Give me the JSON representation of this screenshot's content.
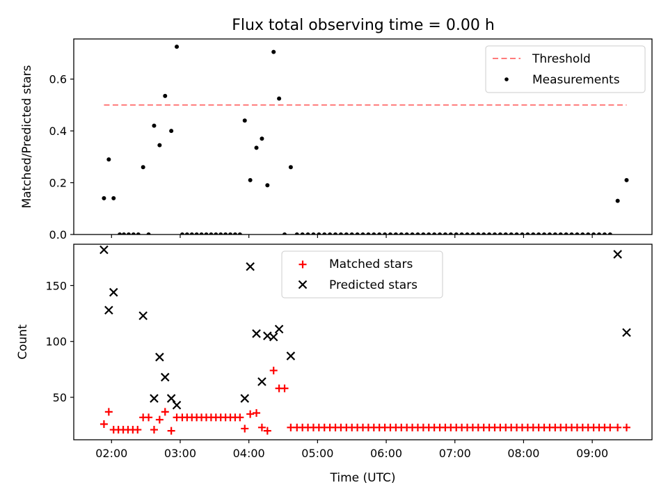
{
  "figure": {
    "title": "Flux total observing time = 0.00 h"
  },
  "chart_data": [
    {
      "type": "scatter",
      "ylabel": "Matched/Predicted stars",
      "xlabel": "",
      "xlim": [
        1.45,
        9.87
      ],
      "ylim": [
        0.0,
        0.755
      ],
      "yticks": [
        0.0,
        0.2,
        0.4,
        0.6
      ],
      "ytick_labels": [
        "0.0",
        "0.2",
        "0.4",
        "0.6"
      ],
      "grid": false,
      "legend_position": "upper-right",
      "threshold": {
        "name": "Threshold",
        "value": 0.5,
        "x": [
          1.89,
          9.5
        ],
        "color": "#ff7b7b"
      },
      "series": [
        {
          "name": "Measurements",
          "color": "#000000",
          "x": [
            1.89,
            1.96,
            2.03,
            2.12,
            2.18,
            2.25,
            2.32,
            2.39,
            2.46,
            2.54,
            2.62,
            2.7,
            2.78,
            2.87,
            2.95,
            3.03,
            3.1,
            3.17,
            3.24,
            3.31,
            3.38,
            3.45,
            3.52,
            3.59,
            3.66,
            3.73,
            3.8,
            3.87,
            3.94,
            4.02,
            4.11,
            4.19,
            4.27,
            4.36,
            4.44,
            4.52,
            4.61,
            4.7,
            4.78,
            4.86,
            4.94,
            5.02,
            5.1,
            5.18,
            5.26,
            5.34,
            5.42,
            5.5,
            5.58,
            5.66,
            5.74,
            5.82,
            5.9,
            5.98,
            6.06,
            6.14,
            6.22,
            6.3,
            6.38,
            6.46,
            6.54,
            6.62,
            6.7,
            6.78,
            6.86,
            6.94,
            7.02,
            7.1,
            7.18,
            7.26,
            7.34,
            7.42,
            7.5,
            7.58,
            7.66,
            7.74,
            7.82,
            7.9,
            7.98,
            8.06,
            8.14,
            8.22,
            8.3,
            8.38,
            8.46,
            8.54,
            8.62,
            8.7,
            8.78,
            8.86,
            8.94,
            9.02,
            9.1,
            9.18,
            9.26,
            9.37,
            9.5
          ],
          "y": [
            0.14,
            0.29,
            0.14,
            0.0,
            0.0,
            0.0,
            0.0,
            0.0,
            0.26,
            0.0,
            0.42,
            0.345,
            0.535,
            0.4,
            0.725,
            0.0,
            0.0,
            0.0,
            0.0,
            0.0,
            0.0,
            0.0,
            0.0,
            0.0,
            0.0,
            0.0,
            0.0,
            0.0,
            0.44,
            0.21,
            0.335,
            0.37,
            0.19,
            0.705,
            0.525,
            0.0,
            0.26,
            0.0,
            0.0,
            0.0,
            0.0,
            0.0,
            0.0,
            0.0,
            0.0,
            0.0,
            0.0,
            0.0,
            0.0,
            0.0,
            0.0,
            0.0,
            0.0,
            0.0,
            0.0,
            0.0,
            0.0,
            0.0,
            0.0,
            0.0,
            0.0,
            0.0,
            0.0,
            0.0,
            0.0,
            0.0,
            0.0,
            0.0,
            0.0,
            0.0,
            0.0,
            0.0,
            0.0,
            0.0,
            0.0,
            0.0,
            0.0,
            0.0,
            0.0,
            0.0,
            0.0,
            0.0,
            0.0,
            0.0,
            0.0,
            0.0,
            0.0,
            0.0,
            0.0,
            0.0,
            0.0,
            0.0,
            0.0,
            0.0,
            0.0,
            0.13,
            0.21
          ]
        }
      ]
    },
    {
      "type": "scatter",
      "ylabel": "Count",
      "xlabel": "Time (UTC)",
      "xlim": [
        1.45,
        9.87
      ],
      "ylim": [
        12,
        187
      ],
      "yticks": [
        50,
        100,
        150
      ],
      "ytick_labels": [
        "50",
        "100",
        "150"
      ],
      "xticks": [
        2,
        3,
        4,
        5,
        6,
        7,
        8,
        9
      ],
      "xtick_labels": [
        "02:00",
        "03:00",
        "04:00",
        "05:00",
        "06:00",
        "07:00",
        "08:00",
        "09:00"
      ],
      "grid": false,
      "legend_position": "upper-center",
      "series": [
        {
          "name": "Matched stars",
          "marker": "plus",
          "color": "#ff0000",
          "x": [
            1.89,
            1.96,
            2.03,
            2.1,
            2.17,
            2.24,
            2.31,
            2.38,
            2.46,
            2.54,
            2.62,
            2.7,
            2.78,
            2.87,
            2.95,
            3.03,
            3.1,
            3.17,
            3.24,
            3.31,
            3.38,
            3.45,
            3.52,
            3.59,
            3.66,
            3.73,
            3.8,
            3.87,
            3.94,
            4.02,
            4.11,
            4.19,
            4.27,
            4.36,
            4.44,
            4.52,
            4.61,
            4.7,
            4.78,
            4.86,
            4.94,
            5.02,
            5.1,
            5.18,
            5.26,
            5.34,
            5.42,
            5.5,
            5.58,
            5.66,
            5.74,
            5.82,
            5.9,
            5.98,
            6.06,
            6.14,
            6.22,
            6.3,
            6.38,
            6.46,
            6.54,
            6.62,
            6.7,
            6.78,
            6.86,
            6.94,
            7.02,
            7.1,
            7.18,
            7.26,
            7.34,
            7.42,
            7.5,
            7.58,
            7.66,
            7.74,
            7.82,
            7.9,
            7.98,
            8.06,
            8.14,
            8.22,
            8.3,
            8.38,
            8.46,
            8.54,
            8.62,
            8.7,
            8.78,
            8.86,
            8.94,
            9.02,
            9.1,
            9.18,
            9.26,
            9.37,
            9.5
          ],
          "y": [
            26,
            37,
            21,
            21,
            21,
            21,
            21,
            21,
            32,
            32,
            21,
            30,
            37,
            20,
            32,
            32,
            32,
            32,
            32,
            32,
            32,
            32,
            32,
            32,
            32,
            32,
            32,
            32,
            22,
            35,
            36,
            23,
            20,
            74,
            58,
            58,
            23,
            23,
            23,
            23,
            23,
            23,
            23,
            23,
            23,
            23,
            23,
            23,
            23,
            23,
            23,
            23,
            23,
            23,
            23,
            23,
            23,
            23,
            23,
            23,
            23,
            23,
            23,
            23,
            23,
            23,
            23,
            23,
            23,
            23,
            23,
            23,
            23,
            23,
            23,
            23,
            23,
            23,
            23,
            23,
            23,
            23,
            23,
            23,
            23,
            23,
            23,
            23,
            23,
            23,
            23,
            23,
            23,
            23,
            23,
            23,
            23
          ]
        },
        {
          "name": "Predicted stars",
          "marker": "x",
          "color": "#000000",
          "x": [
            1.89,
            1.96,
            2.03,
            2.46,
            2.62,
            2.7,
            2.78,
            2.87,
            2.95,
            3.94,
            4.02,
            4.11,
            4.19,
            4.27,
            4.36,
            4.44,
            4.61,
            9.37,
            9.5
          ],
          "y": [
            182,
            128,
            144,
            123,
            49,
            86,
            68,
            49,
            43,
            49,
            167,
            107,
            64,
            105,
            104,
            111,
            87,
            178,
            108
          ]
        }
      ]
    }
  ]
}
